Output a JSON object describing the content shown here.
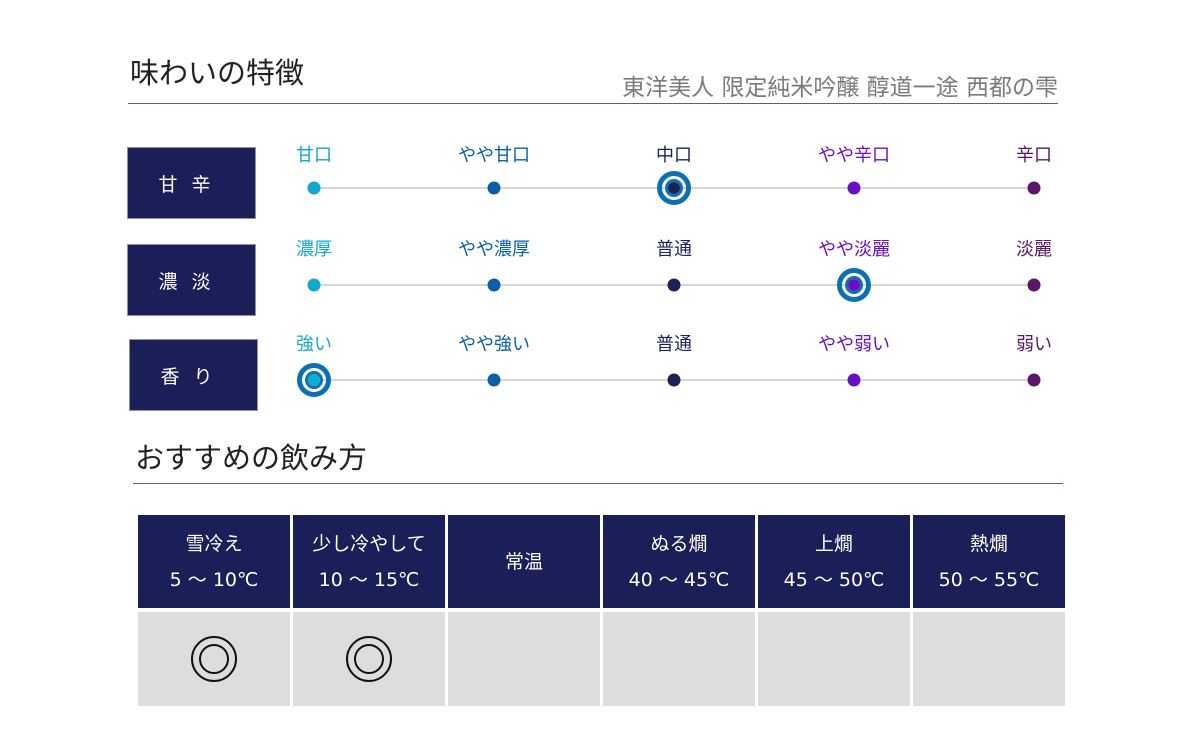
{
  "taste": {
    "title": "味わいの特徴",
    "product_name": "東洋美人 限定純米吟醸 醇道一途 西都の雫",
    "scale_colors": [
      "#12a9cf",
      "#0a5fa8",
      "#1b2356",
      "#6a0fc4",
      "#5a1668"
    ],
    "ring_color": "#0a6fb5",
    "rows": [
      {
        "category": "甘辛",
        "labels": [
          "甘口",
          "やや甘口",
          "中口",
          "やや辛口",
          "辛口"
        ],
        "selected_index": 2
      },
      {
        "category": "濃淡",
        "labels": [
          "濃厚",
          "やや濃厚",
          "普通",
          "やや淡麗",
          "淡麗"
        ],
        "selected_index": 3
      },
      {
        "category": "香り",
        "labels": [
          "強い",
          "やや強い",
          "普通",
          "やや弱い",
          "弱い"
        ],
        "selected_index": 0
      }
    ]
  },
  "serving": {
    "title": "おすすめの飲み方",
    "columns": [
      {
        "name": "雪冷え",
        "temp": "5 〜 10℃",
        "recommended": true,
        "mark": "◎"
      },
      {
        "name": "少し冷やして",
        "temp": "10 〜 15℃",
        "recommended": true,
        "mark": "◎"
      },
      {
        "name": "常温",
        "temp": "",
        "recommended": false
      },
      {
        "name": "ぬる燗",
        "temp": "40 〜 45℃",
        "recommended": false
      },
      {
        "name": "上燗",
        "temp": "45 〜 50℃",
        "recommended": false
      },
      {
        "name": "熱燗",
        "temp": "50 〜 55℃",
        "recommended": false
      }
    ]
  }
}
